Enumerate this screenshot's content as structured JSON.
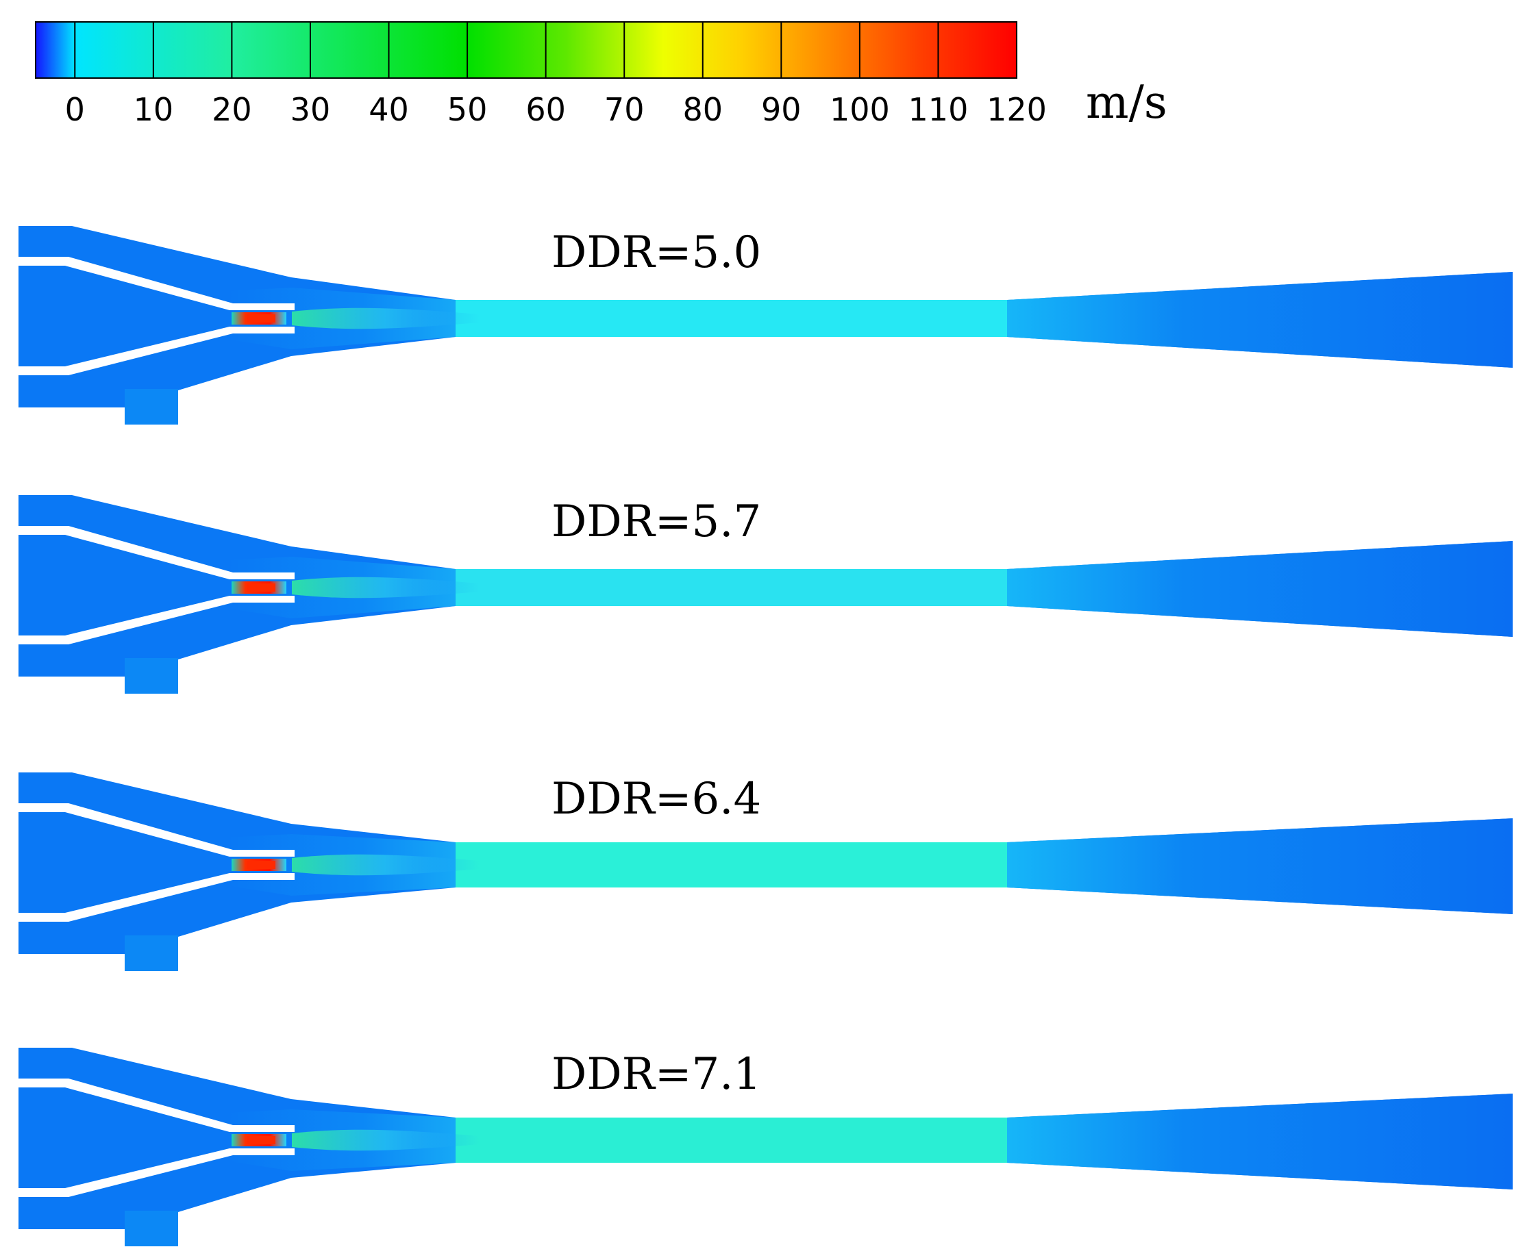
{
  "colorbar": {
    "unit": "m/s",
    "tick_labels": [
      "0",
      "10",
      "20",
      "30",
      "40",
      "50",
      "60",
      "70",
      "80",
      "90",
      "100",
      "110",
      "120"
    ],
    "range": [
      -5,
      120
    ],
    "colors": [
      "#1a1aff",
      "#00e5ff",
      "#22eec0",
      "#1fe87a",
      "#12e03a",
      "#00e000",
      "#66ee00",
      "#eeff00",
      "#ffc800",
      "#ff8000",
      "#ff3c00",
      "#ff0000"
    ]
  },
  "panels": [
    {
      "label": "DDR=5.0",
      "throat_color": "#26e8f4",
      "nozzle_jet_color": "#ff2a00"
    },
    {
      "label": "DDR=5.7",
      "throat_color": "#2ae2f0",
      "nozzle_jet_color": "#ff2a00"
    },
    {
      "label": "DDR=6.4",
      "throat_color": "#2af0d8",
      "nozzle_jet_color": "#ff2a00"
    },
    {
      "label": "DDR=7.1",
      "throat_color": "#2aeed4",
      "nozzle_jet_color": "#ff2a00"
    }
  ],
  "colors": {
    "background_flow": "#0a78f5",
    "wall": "#ffffff"
  }
}
